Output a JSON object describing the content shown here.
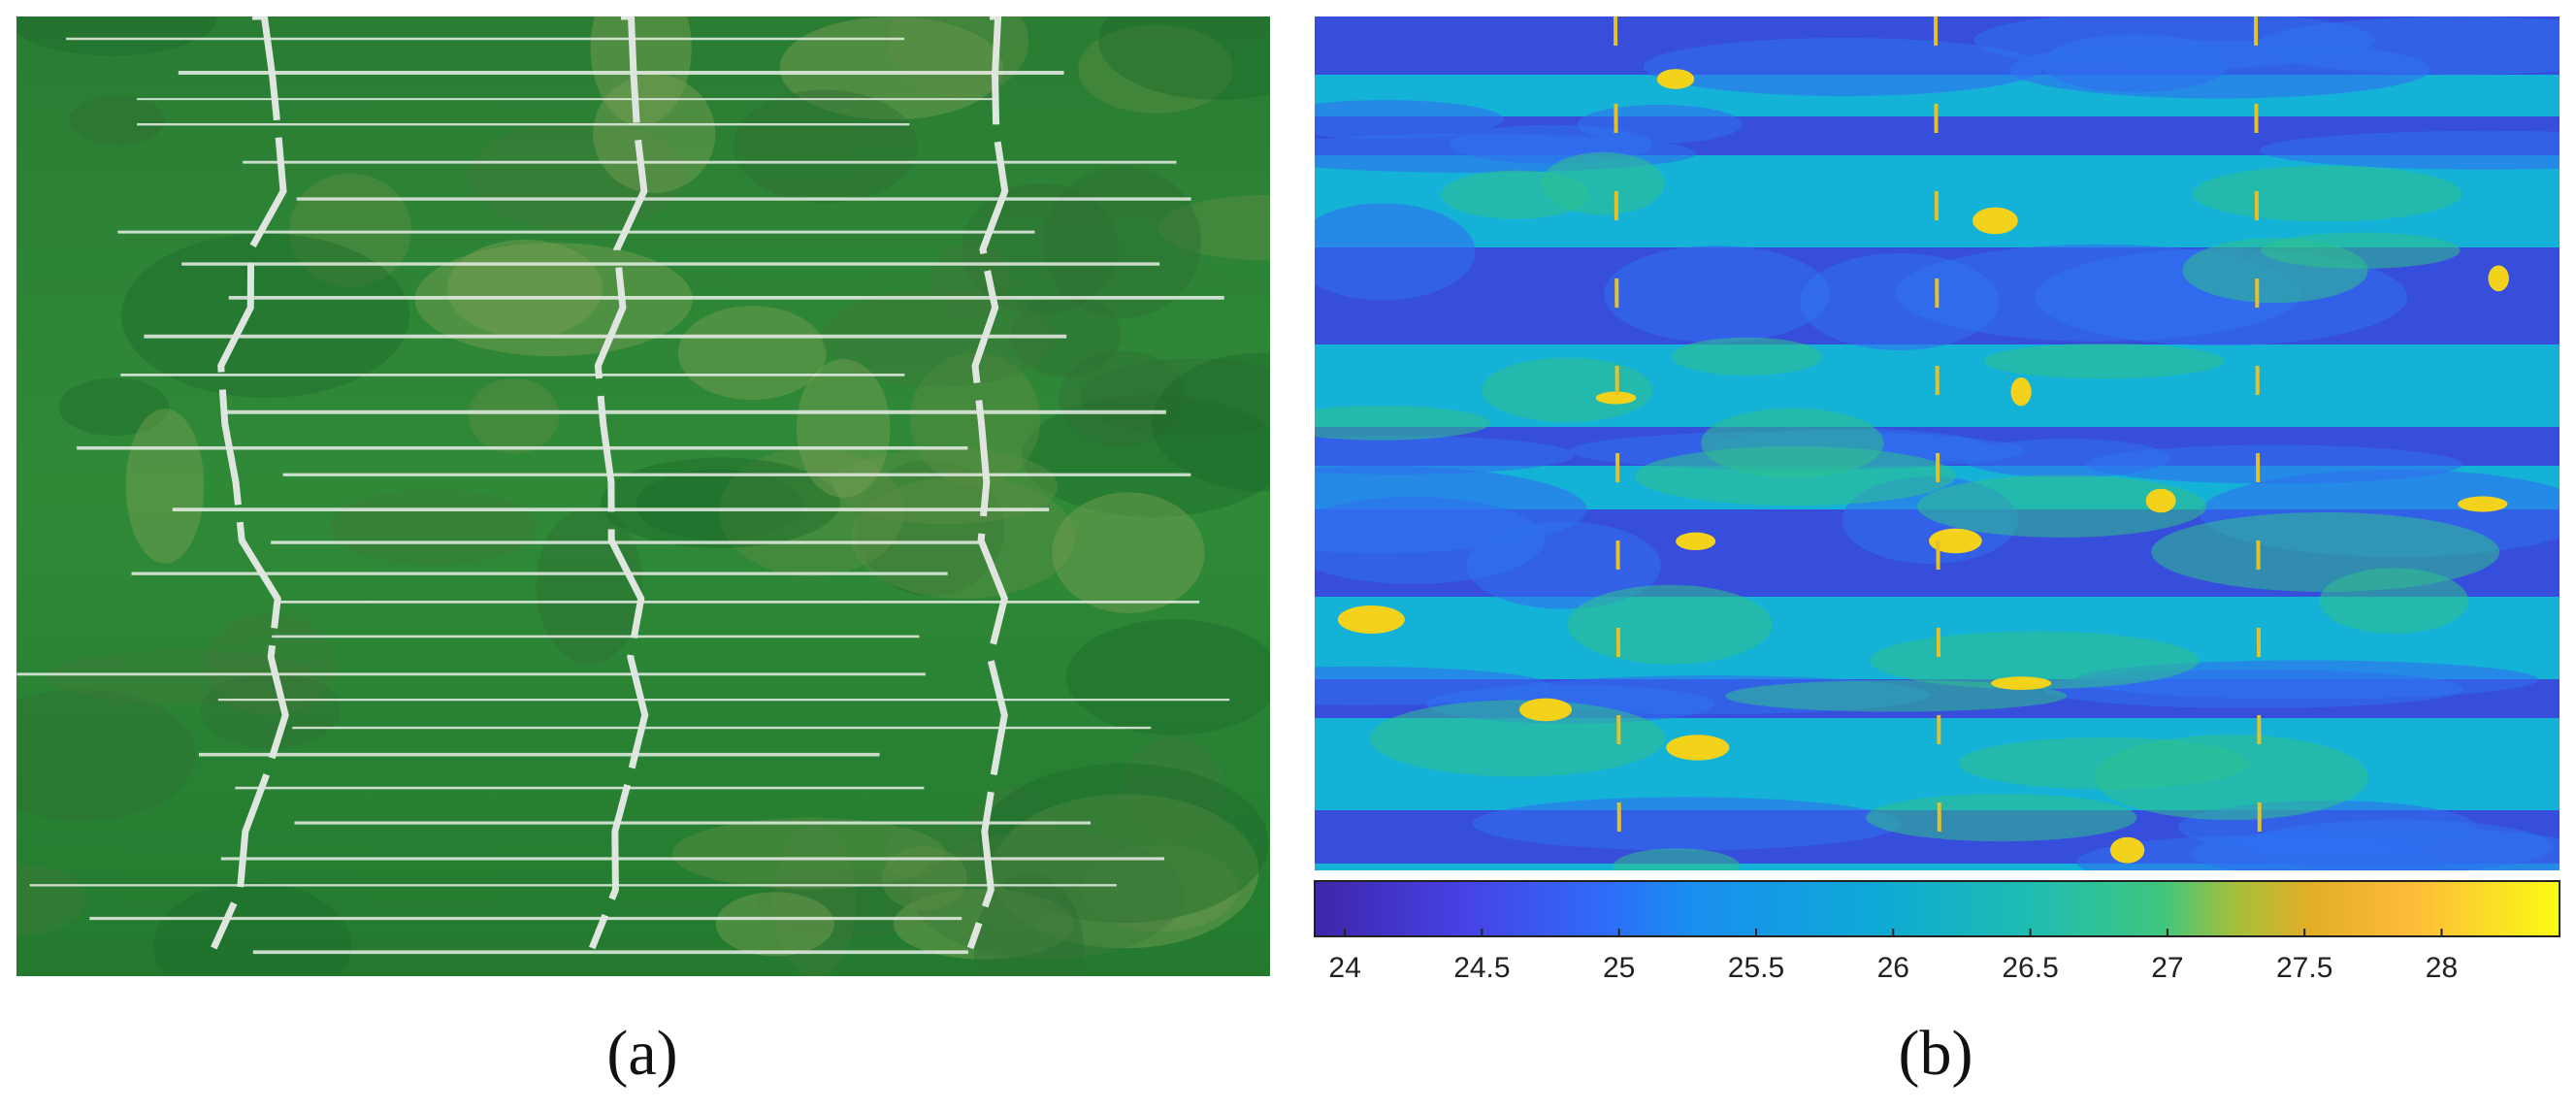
{
  "panels": [
    {
      "label": "(a)"
    },
    {
      "label": "(b)"
    }
  ],
  "colorbar": {
    "range": [
      23.89,
      28.43
    ],
    "ticks": [
      24,
      24.5,
      25,
      25.5,
      26,
      26.5,
      27,
      27.5,
      28
    ]
  }
}
